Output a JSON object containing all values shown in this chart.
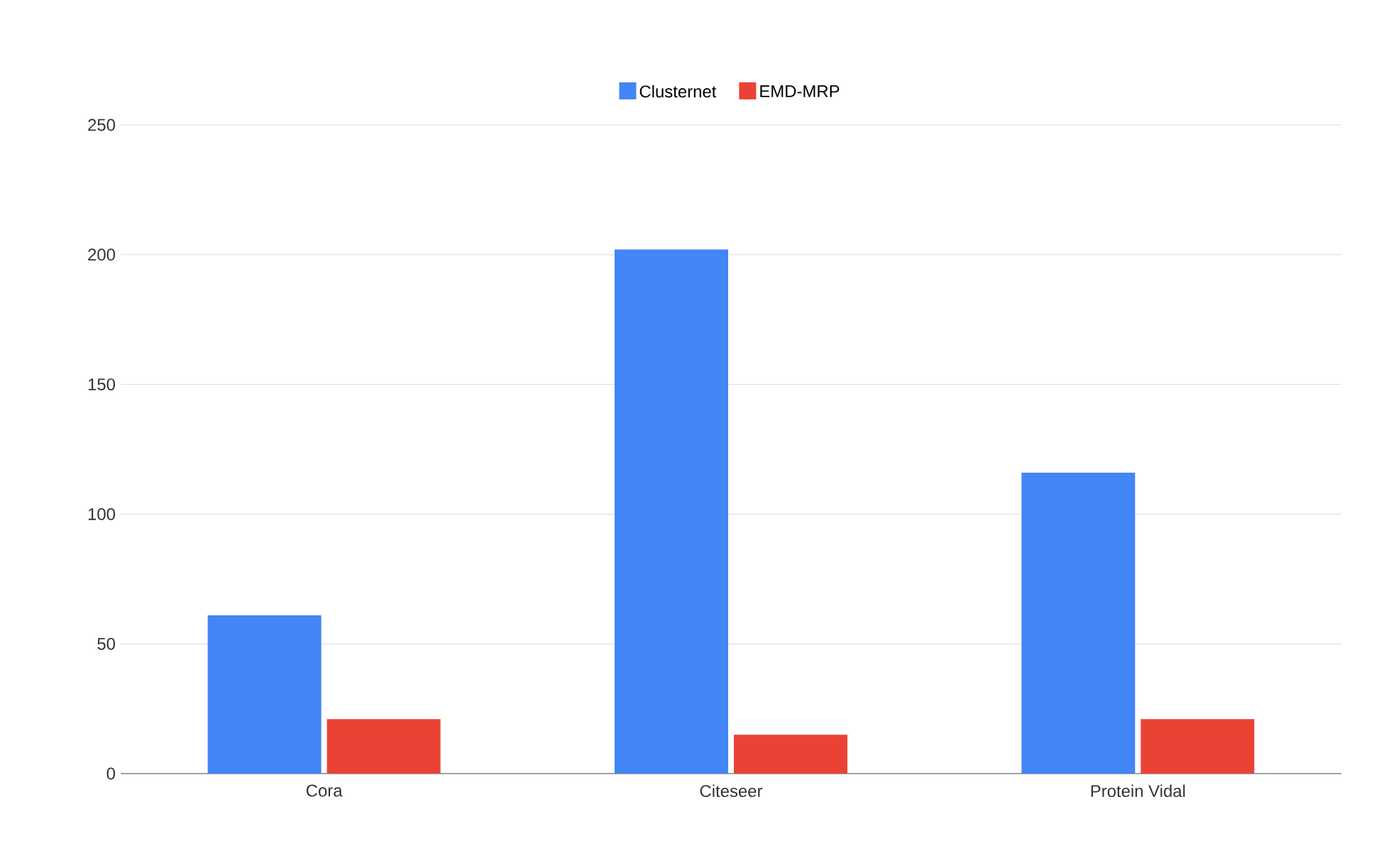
{
  "chart_data": {
    "type": "bar",
    "categories": [
      "Cora",
      "Citeseer",
      "Protein Vidal"
    ],
    "series": [
      {
        "name": "Clusternet",
        "color": "#4285f4",
        "values": [
          61,
          202,
          116
        ]
      },
      {
        "name": "EMD-MRP",
        "color": "#ea4335",
        "values": [
          21,
          15,
          21
        ]
      }
    ],
    "ylim": [
      0,
      250
    ],
    "yticks": [
      0,
      50,
      100,
      150,
      200,
      250
    ],
    "grid": "y",
    "legend": "top"
  }
}
